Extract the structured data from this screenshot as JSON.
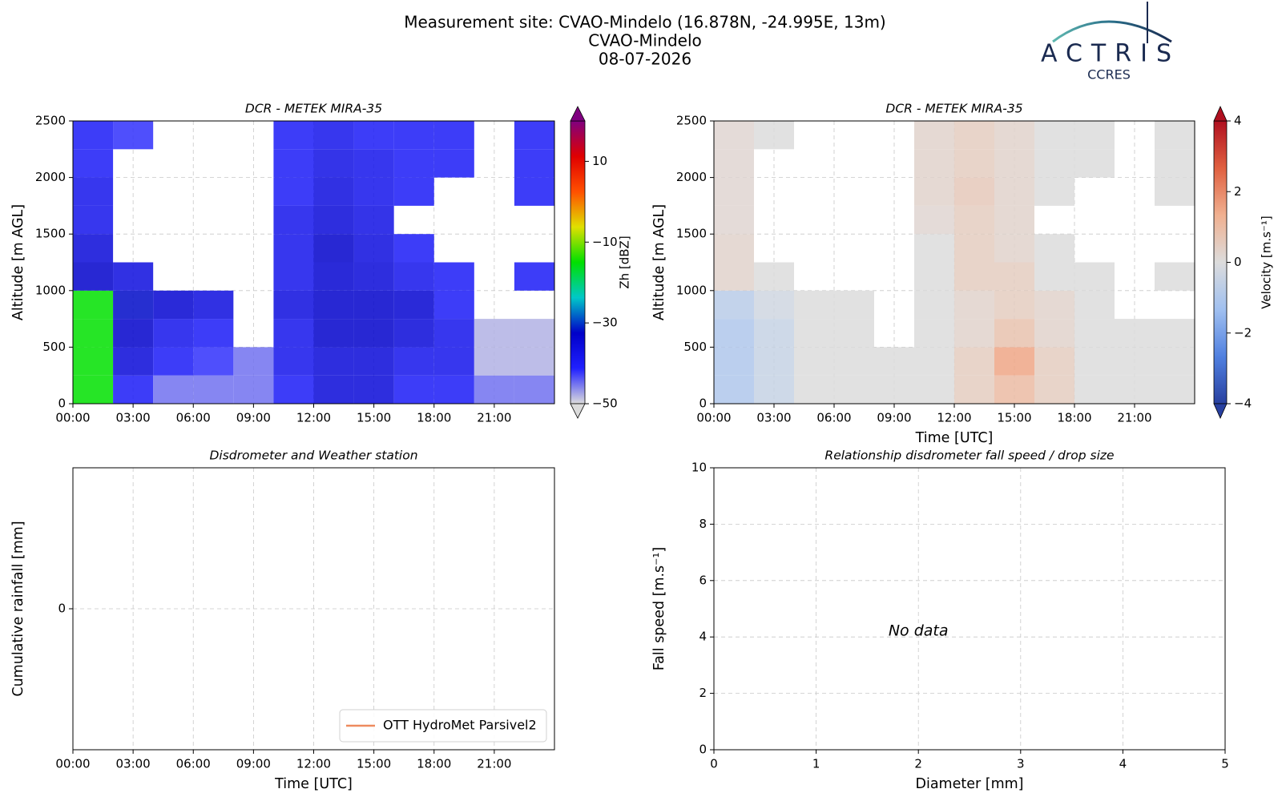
{
  "header": {
    "title_lines": [
      "Measurement site: CVAO-Mindelo (16.878N, -24.995E, 13m)",
      "CVAO-Mindelo",
      "08-07-2026"
    ]
  },
  "logo": {
    "name": "ACTRIS",
    "subtitle": "CCRES"
  },
  "chart_data": [
    {
      "type": "heatmap",
      "title": "DCR - METEK MIRA-35",
      "ylabel": "Altitude [m AGL]",
      "xlim": [
        0,
        24
      ],
      "ylim": [
        0,
        2500
      ],
      "grid": true,
      "xticks": [
        {
          "value": 0,
          "label": "00:00"
        },
        {
          "value": 3,
          "label": "03:00"
        },
        {
          "value": 6,
          "label": "06:00"
        },
        {
          "value": 9,
          "label": "09:00"
        },
        {
          "value": 12,
          "label": "12:00"
        },
        {
          "value": 15,
          "label": "15:00"
        },
        {
          "value": 18,
          "label": "18:00"
        },
        {
          "value": 21,
          "label": "21:00"
        }
      ],
      "yticks": [
        0,
        500,
        1000,
        1500,
        2000,
        2500
      ],
      "xbins": [
        0,
        2,
        4,
        6,
        8,
        10,
        12,
        14,
        16,
        18,
        20,
        22,
        24
      ],
      "ybins": [
        0,
        250,
        500,
        750,
        1000,
        1250,
        1500,
        1750,
        2000,
        2250,
        2500
      ],
      "z": [
        [
          -15,
          -40,
          -45,
          -45,
          -45,
          -40,
          -35,
          -35,
          -40,
          -40,
          -45,
          -45
        ],
        [
          -15,
          -35,
          -40,
          -42,
          -45,
          -38,
          -35,
          -35,
          -38,
          -38,
          -48,
          -48
        ],
        [
          -15,
          -33,
          -38,
          -40,
          null,
          -38,
          -33,
          -33,
          -35,
          -38,
          -48,
          -48
        ],
        [
          -15,
          -32,
          -34,
          -36,
          null,
          -36,
          -33,
          -33,
          -34,
          -40,
          null,
          null
        ],
        [
          -33,
          -36,
          null,
          null,
          null,
          -38,
          -34,
          -35,
          -38,
          -40,
          null,
          -40
        ],
        [
          -35,
          null,
          null,
          null,
          null,
          -38,
          -33,
          -36,
          -40,
          null,
          null,
          null
        ],
        [
          -38,
          null,
          null,
          null,
          null,
          -38,
          -35,
          -37,
          null,
          null,
          null,
          null
        ],
        [
          -38,
          null,
          null,
          null,
          null,
          -40,
          -36,
          -38,
          -40,
          null,
          null,
          -40
        ],
        [
          -40,
          null,
          null,
          null,
          null,
          -40,
          -37,
          -38,
          -40,
          -40,
          null,
          -40
        ],
        [
          -40,
          -42,
          null,
          null,
          null,
          -40,
          -38,
          -40,
          -40,
          -40,
          null,
          -40
        ]
      ],
      "clim": [
        -50,
        20
      ],
      "colormap": [
        "#dcdcdc",
        "#2020ff",
        "#0000c8",
        "#00c8c8",
        "#00e000",
        "#e0e000",
        "#ff5000",
        "#e00000",
        "#800080"
      ],
      "cticks": [
        {
          "value": -50,
          "label": "−50"
        },
        {
          "value": -30,
          "label": "−30"
        },
        {
          "value": -10,
          "label": "−10"
        },
        10
      ],
      "clabel": "Zh [dBZ]"
    },
    {
      "type": "heatmap",
      "title": "DCR - METEK MIRA-35",
      "xlabel": "Time [UTC]",
      "ylabel": "Altitude [m AGL]",
      "xlim": [
        0,
        24
      ],
      "ylim": [
        0,
        2500
      ],
      "grid": true,
      "xticks": [
        {
          "value": 0,
          "label": "00:00"
        },
        {
          "value": 3,
          "label": "03:00"
        },
        {
          "value": 6,
          "label": "06:00"
        },
        {
          "value": 9,
          "label": "09:00"
        },
        {
          "value": 12,
          "label": "12:00"
        },
        {
          "value": 15,
          "label": "15:00"
        },
        {
          "value": 18,
          "label": "18:00"
        },
        {
          "value": 21,
          "label": "21:00"
        }
      ],
      "yticks": [
        0,
        500,
        1000,
        1500,
        2000,
        2500
      ],
      "xbins": [
        0,
        2,
        4,
        6,
        8,
        10,
        12,
        14,
        16,
        18,
        20,
        22,
        24
      ],
      "ybins": [
        0,
        250,
        500,
        750,
        1000,
        1250,
        1500,
        1750,
        2000,
        2250,
        2500
      ],
      "z": [
        [
          -1,
          -0.5,
          0,
          0,
          0,
          0,
          0.5,
          1,
          0.5,
          0,
          0,
          0
        ],
        [
          -1,
          -0.5,
          0,
          0,
          0,
          0,
          0.5,
          1.5,
          0.5,
          0,
          0,
          0
        ],
        [
          -1,
          -0.5,
          0,
          0,
          null,
          0,
          0.3,
          0.8,
          0.3,
          0,
          0,
          0
        ],
        [
          -0.8,
          -0.3,
          0,
          0,
          null,
          0,
          0.3,
          0.5,
          0.3,
          0,
          null,
          null
        ],
        [
          0.3,
          0,
          null,
          null,
          null,
          0,
          0.5,
          0.5,
          0,
          0,
          null,
          0
        ],
        [
          0.3,
          null,
          null,
          null,
          null,
          0,
          0.5,
          0.3,
          0,
          null,
          null,
          null
        ],
        [
          0.2,
          null,
          null,
          null,
          null,
          0.2,
          0.5,
          0.3,
          null,
          null,
          null,
          null
        ],
        [
          0.2,
          null,
          null,
          null,
          null,
          0.3,
          0.6,
          0.3,
          0,
          null,
          null,
          0
        ],
        [
          0.2,
          null,
          null,
          null,
          null,
          0.3,
          0.5,
          0.3,
          0,
          0,
          null,
          0
        ],
        [
          0.2,
          0,
          null,
          null,
          null,
          0.3,
          0.5,
          0.3,
          0,
          0,
          null,
          0
        ]
      ],
      "clim": [
        -4,
        4
      ],
      "colormap": [
        "#2840a0",
        "#5080e0",
        "#a0c0f0",
        "#dcdcdc",
        "#f0b090",
        "#e06040",
        "#b01020"
      ],
      "cticks": [
        {
          "value": -4,
          "label": "−4"
        },
        {
          "value": -2,
          "label": "−2"
        },
        0,
        2,
        4
      ],
      "clabel": "Velocity [m.s⁻¹]"
    },
    {
      "type": "line",
      "title": "Disdrometer and Weather station",
      "xlabel": "Time [UTC]",
      "ylabel": "Cumulative rainfall [mm]",
      "xlim": [
        0,
        24
      ],
      "ylim": [
        -0.055,
        0.055
      ],
      "grid": true,
      "xticks": [
        {
          "value": 0,
          "label": "00:00"
        },
        {
          "value": 3,
          "label": "03:00"
        },
        {
          "value": 6,
          "label": "06:00"
        },
        {
          "value": 9,
          "label": "09:00"
        },
        {
          "value": 12,
          "label": "12:00"
        },
        {
          "value": 15,
          "label": "15:00"
        },
        {
          "value": 18,
          "label": "18:00"
        },
        {
          "value": 21,
          "label": "21:00"
        }
      ],
      "yticks": [
        0
      ],
      "x": [
        0,
        24
      ],
      "series": [
        {
          "name": "OTT HydroMet Parsivel2",
          "color": "#ee8a5f",
          "values": [
            0,
            0
          ]
        }
      ],
      "legend": "lower right"
    },
    {
      "type": "scatter",
      "title": "Relationship disdrometer fall speed / drop size",
      "xlabel": "Diameter [mm]",
      "ylabel": "Fall speed [m.s⁻¹]",
      "xlim": [
        0,
        5
      ],
      "ylim": [
        0,
        10
      ],
      "grid": true,
      "xticks": [
        0,
        1,
        2,
        3,
        4,
        5
      ],
      "yticks": [
        0,
        2,
        4,
        6,
        8,
        10
      ],
      "series": [],
      "annotation": "No data"
    }
  ]
}
